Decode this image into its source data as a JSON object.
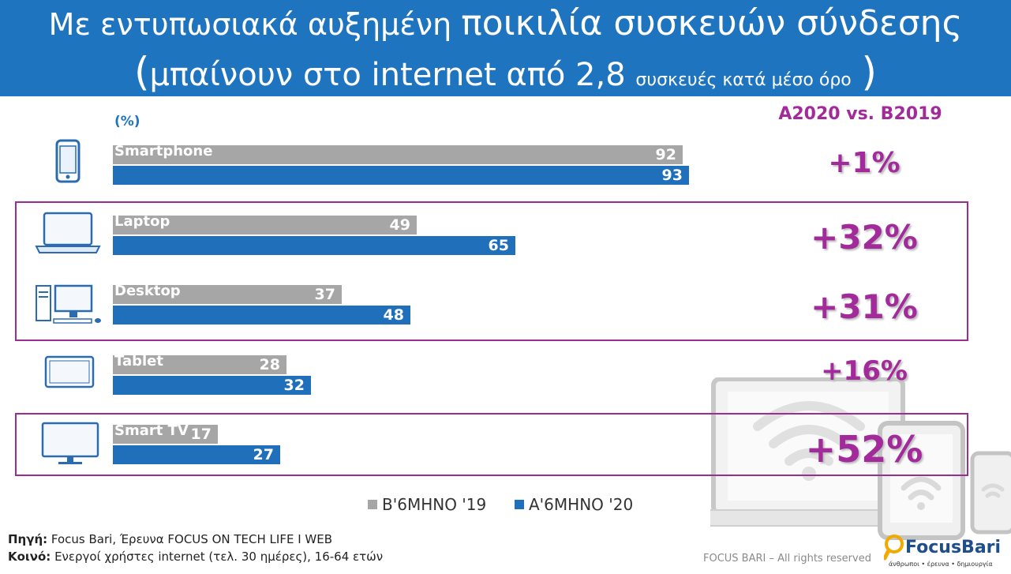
{
  "header": {
    "title_line1_a": "Με εντυπωσιακά αυξημένη ",
    "title_line1_b": "ποικιλία συσκευών σύνδεσης",
    "title_line2_open": "(",
    "title_line2_a": "μπαίνουν στο internet από 2,8 ",
    "title_line2_b": "συσκευές κατά μέσο όρο",
    "title_line2_close": ")"
  },
  "chart_data": {
    "type": "bar",
    "orientation": "horizontal",
    "unit_label": "(%)",
    "categories": [
      "Smartphone",
      "Laptop",
      "Desktop",
      "Tablet",
      "Smart TV"
    ],
    "series": [
      {
        "name": "Β'6ΜΗΝΟ '19",
        "color": "#a6a6a6",
        "values": [
          92,
          49,
          37,
          28,
          17
        ]
      },
      {
        "name": "Α'6ΜΗΝΟ '20",
        "color": "#1f6fba",
        "values": [
          93,
          65,
          48,
          32,
          27
        ]
      }
    ],
    "comparison_label": "A2020 vs. B2019",
    "growth": [
      "+1%",
      "+32%",
      "+31%",
      "+16%",
      "+52%"
    ],
    "highlighted": [
      "Laptop",
      "Desktop",
      "Smart TV"
    ],
    "legend_position": "bottom"
  },
  "icons": [
    "smartphone-icon",
    "laptop-icon",
    "desktop-icon",
    "tablet-icon",
    "smart-tv-icon",
    "devices-wifi-illustration"
  ],
  "footer": {
    "source_label": "Πηγή:",
    "source_text": " Focus Bari, Έρευνα FOCUS ON TECH LIFE I WEB",
    "audience_label": "Κοινό:",
    "audience_text": " Ενεργοί χρήστες internet (τελ. 30 ημέρες), 16-64 ετών",
    "rights": "FOCUS BARI – All rights reserved",
    "logo_text": "FocusBari",
    "logo_tagline": "άνθρωποι • έρευνα • δημιουργία"
  },
  "colors": {
    "header_bg": "#1f74c0",
    "accent": "#a22a9a",
    "bar_2019": "#a6a6a6",
    "bar_2020": "#1f6fba"
  }
}
